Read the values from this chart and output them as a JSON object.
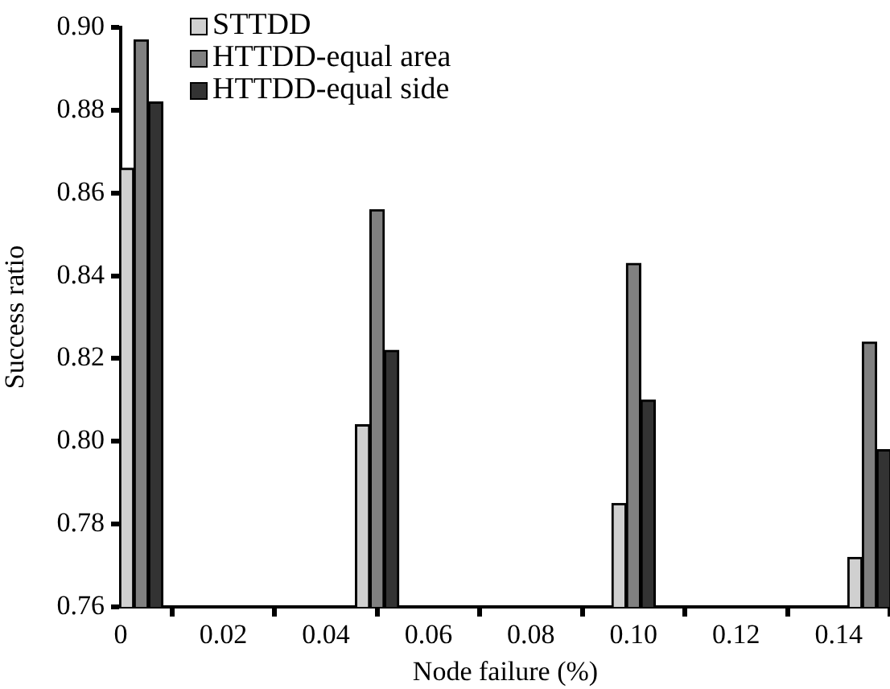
{
  "chart_data": {
    "type": "bar",
    "xlabel": "Node failure (%)",
    "ylabel": "Success ratio",
    "x": [
      0.004,
      0.05,
      0.1,
      0.146
    ],
    "series": [
      {
        "name": "STTDD",
        "color": "#d0d0d0",
        "values": [
          0.866,
          0.804,
          0.785,
          0.772
        ]
      },
      {
        "name": "HTTDD-equal area",
        "color": "#808080",
        "values": [
          0.897,
          0.856,
          0.843,
          0.824
        ]
      },
      {
        "name": "HTTDD-equal side",
        "color": "#333333",
        "values": [
          0.882,
          0.822,
          0.81,
          0.798
        ]
      }
    ],
    "xlim": [
      0,
      0.15
    ],
    "xticks": [
      0,
      0.02,
      0.04,
      0.06,
      0.08,
      {
        "value": 0.1,
        "label": "0.10"
      },
      0.12,
      0.14
    ],
    "ylim": [
      0.76,
      0.9
    ],
    "yticks": [
      0.76,
      0.78,
      {
        "value": 0.8,
        "label": "0.80"
      },
      0.82,
      0.84,
      0.86,
      0.88,
      {
        "value": 0.9,
        "label": "0.90"
      }
    ],
    "grid": false,
    "legend": "top left"
  }
}
